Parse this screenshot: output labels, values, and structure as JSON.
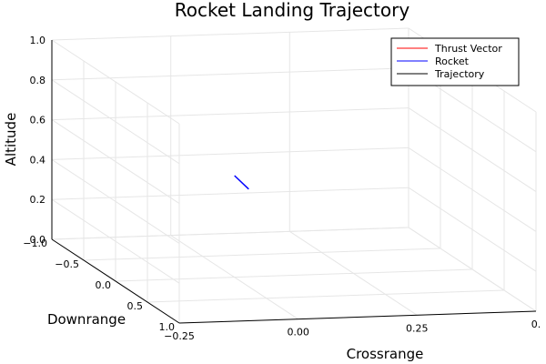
{
  "chart_data": {
    "type": "line3d",
    "title": "Rocket Landing Trajectory",
    "xlabel": "Crossrange",
    "ylabel": "Downrange",
    "zlabel": "Altitude",
    "xlim": [
      -0.25,
      0.5
    ],
    "ylim": [
      -1.0,
      1.0
    ],
    "zlim": [
      0.0,
      1.0
    ],
    "xticks": [
      "−0.25",
      "0.00",
      "0.25",
      "0."
    ],
    "yticks": [
      "−1.0",
      "−0.5",
      "0.0",
      "0.5",
      "1.0"
    ],
    "zticks": [
      "0.0",
      "0.2",
      "0.4",
      "0.6",
      "0.8",
      "1.0"
    ],
    "grid": true,
    "legend_position": "top-right",
    "series": [
      {
        "name": "Thrust Vector",
        "color": "#ff0000",
        "points": []
      },
      {
        "name": "Rocket",
        "color": "#0000ff",
        "points": [
          [
            0.03,
            0.0,
            0.44
          ],
          [
            0.0,
            0.0,
            0.51
          ]
        ]
      },
      {
        "name": "Trajectory",
        "color": "#000000",
        "points": []
      }
    ]
  }
}
